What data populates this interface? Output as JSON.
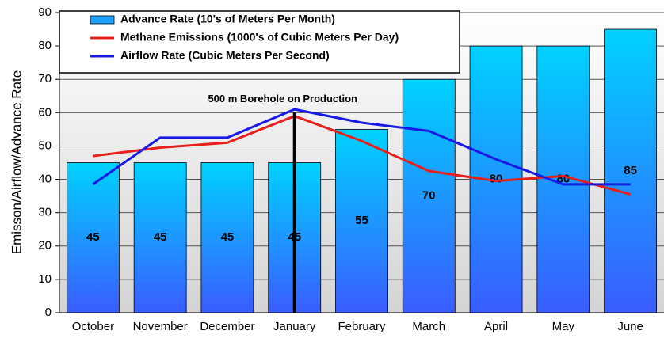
{
  "chart_data": {
    "type": "bar",
    "y_label": "Emisson/Airflow/Advance Rate",
    "annotation": "500 m Borehole on Production",
    "categories": [
      "October",
      "November",
      "December",
      "January",
      "February",
      "March",
      "April",
      "May",
      "June"
    ],
    "series": [
      {
        "name": "Advance Rate (10's of Meters Per Month)",
        "type": "bar",
        "color": "#1ea0ff",
        "values": [
          45,
          45,
          45,
          45,
          55,
          70,
          80,
          80,
          85
        ]
      },
      {
        "name": "Methane Emissions (1000's of Cubic Meters Per Day)",
        "type": "line",
        "color": "#e8201c",
        "values": [
          47,
          49.5,
          51,
          59,
          51.5,
          42.5,
          39.5,
          41,
          35.5
        ]
      },
      {
        "name": "Airflow Rate (Cubic Meters Per Second)",
        "type": "line",
        "color": "#1a1ae6",
        "values": [
          38.5,
          52.5,
          52.5,
          61,
          57,
          54.5,
          46,
          38.5,
          38.5
        ]
      }
    ],
    "ylim": [
      0,
      90
    ],
    "yticks": [
      0,
      10,
      20,
      30,
      40,
      50,
      60,
      70,
      80,
      90
    ],
    "grid": true
  }
}
